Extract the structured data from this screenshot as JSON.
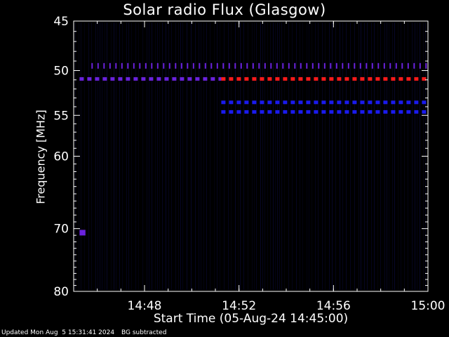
{
  "chart_data": {
    "type": "heatmap",
    "title": "Solar radio Flux (Glasgow)",
    "xlabel": "Start Time (05-Aug-24 14:45:00)",
    "ylabel": "Frequency [MHz]",
    "x_ticks": [
      "14:48",
      "14:52",
      "14:56",
      "15:00"
    ],
    "x_range": [
      "14:45:00",
      "15:00:00"
    ],
    "y_ticks": [
      45,
      50,
      55,
      60,
      70,
      80
    ],
    "ylim": [
      45,
      80
    ],
    "grid": false,
    "colors": {
      "background": "#000000",
      "axes": "#ffffff",
      "noise": "#0a0a3a",
      "band_blue": "#1a1aee",
      "band_violet": "#6a22dd",
      "band_red": "#ff1a1a"
    },
    "bands": [
      {
        "freq_mhz": 49.5,
        "start": "14:45:45",
        "end": "15:00:00",
        "color": "violet",
        "style": "ticks"
      },
      {
        "freq_mhz": 50.9,
        "start": "14:45:15",
        "end": "14:51:15",
        "color": "violet",
        "style": "dashed"
      },
      {
        "freq_mhz": 50.9,
        "start": "14:51:15",
        "end": "15:00:00",
        "color": "red",
        "style": "dashed"
      },
      {
        "freq_mhz": 53.5,
        "start": "14:51:15",
        "end": "15:00:00",
        "color": "blue",
        "style": "dashed"
      },
      {
        "freq_mhz": 54.6,
        "start": "14:51:15",
        "end": "15:00:00",
        "color": "blue",
        "style": "dashed"
      },
      {
        "freq_mhz": 70.6,
        "start": "14:45:15",
        "end": "14:45:30",
        "color": "violet",
        "style": "spot"
      }
    ]
  },
  "footer": {
    "updated": "Updated Mon Aug  5 15:31:41 2024",
    "note": "BG subtracted"
  }
}
